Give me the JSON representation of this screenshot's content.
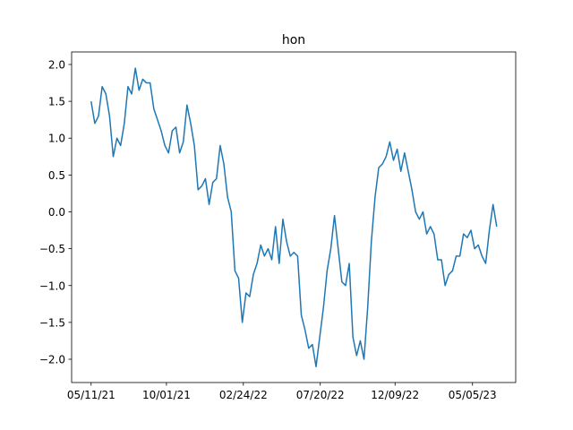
{
  "chart_data": {
    "type": "line",
    "title": "hon",
    "x": [
      "2021-05-11",
      "2021-05-18",
      "2021-05-25",
      "2021-06-01",
      "2021-06-08",
      "2021-06-15",
      "2021-06-22",
      "2021-06-29",
      "2021-07-06",
      "2021-07-13",
      "2021-07-20",
      "2021-07-27",
      "2021-08-03",
      "2021-08-10",
      "2021-08-17",
      "2021-08-24",
      "2021-08-31",
      "2021-09-07",
      "2021-09-14",
      "2021-09-21",
      "2021-09-28",
      "2021-10-05",
      "2021-10-12",
      "2021-10-19",
      "2021-10-26",
      "2021-11-02",
      "2021-11-09",
      "2021-11-16",
      "2021-11-23",
      "2021-11-30",
      "2021-12-07",
      "2021-12-14",
      "2021-12-21",
      "2021-12-28",
      "2022-01-04",
      "2022-01-11",
      "2022-01-18",
      "2022-01-25",
      "2022-02-01",
      "2022-02-08",
      "2022-02-15",
      "2022-02-22",
      "2022-03-01",
      "2022-03-08",
      "2022-03-15",
      "2022-03-22",
      "2022-03-29",
      "2022-04-05",
      "2022-04-12",
      "2022-04-19",
      "2022-04-26",
      "2022-05-03",
      "2022-05-10",
      "2022-05-17",
      "2022-05-24",
      "2022-05-31",
      "2022-06-07",
      "2022-06-14",
      "2022-06-21",
      "2022-06-28",
      "2022-07-05",
      "2022-07-12",
      "2022-07-19",
      "2022-07-26",
      "2022-08-02",
      "2022-08-09",
      "2022-08-16",
      "2022-08-23",
      "2022-08-30",
      "2022-09-06",
      "2022-09-13",
      "2022-09-20",
      "2022-09-27",
      "2022-10-04",
      "2022-10-11",
      "2022-10-18",
      "2022-10-25",
      "2022-11-01",
      "2022-11-08",
      "2022-11-15",
      "2022-11-22",
      "2022-11-29",
      "2022-12-06",
      "2022-12-13",
      "2022-12-20",
      "2022-12-27",
      "2023-01-03",
      "2023-01-10",
      "2023-01-17",
      "2023-01-24",
      "2023-01-31",
      "2023-02-07",
      "2023-02-14",
      "2023-02-21",
      "2023-02-28",
      "2023-03-07",
      "2023-03-14",
      "2023-03-21",
      "2023-03-28",
      "2023-04-04",
      "2023-04-11",
      "2023-04-18",
      "2023-04-25",
      "2023-05-02",
      "2023-05-09",
      "2023-05-16",
      "2023-05-23",
      "2023-05-30",
      "2023-06-06",
      "2023-06-13",
      "2023-06-20"
    ],
    "series": [
      {
        "color": "#1f77b4",
        "values": [
          1.5,
          1.2,
          1.3,
          1.7,
          1.6,
          1.3,
          0.75,
          1.0,
          0.9,
          1.2,
          1.7,
          1.6,
          1.95,
          1.65,
          1.8,
          1.75,
          1.75,
          1.4,
          1.25,
          1.1,
          0.9,
          0.8,
          1.1,
          1.15,
          0.8,
          0.95,
          1.45,
          1.2,
          0.9,
          0.3,
          0.35,
          0.45,
          0.1,
          0.4,
          0.45,
          0.9,
          0.65,
          0.2,
          0.0,
          -0.8,
          -0.9,
          -1.5,
          -1.1,
          -1.15,
          -0.85,
          -0.7,
          -0.45,
          -0.6,
          -0.5,
          -0.65,
          -0.2,
          -0.7,
          -0.1,
          -0.4,
          -0.6,
          -0.55,
          -0.6,
          -1.4,
          -1.6,
          -1.85,
          -1.8,
          -2.1,
          -1.7,
          -1.3,
          -0.8,
          -0.5,
          -0.05,
          -0.5,
          -0.95,
          -1.0,
          -0.7,
          -1.7,
          -1.95,
          -1.75,
          -2.0,
          -1.3,
          -0.4,
          0.2,
          0.6,
          0.65,
          0.75,
          0.95,
          0.7,
          0.85,
          0.55,
          0.8,
          0.55,
          0.3,
          0.0,
          -0.1,
          0.0,
          -0.3,
          -0.2,
          -0.3,
          -0.65,
          -0.65,
          -1.0,
          -0.85,
          -0.8,
          -0.6,
          -0.6,
          -0.3,
          -0.35,
          -0.25,
          -0.5,
          -0.45,
          -0.6,
          -0.7,
          -0.25,
          0.1,
          -0.2
        ]
      }
    ],
    "xlim": [
      "2021-04-04",
      "2023-07-26"
    ],
    "xticks": [
      {
        "value": "2021-05-11",
        "label": "05/11/21"
      },
      {
        "value": "2021-10-01",
        "label": "10/01/21"
      },
      {
        "value": "2022-02-24",
        "label": "02/24/22"
      },
      {
        "value": "2022-07-20",
        "label": "07/20/22"
      },
      {
        "value": "2022-12-09",
        "label": "12/09/22"
      },
      {
        "value": "2023-05-05",
        "label": "05/05/23"
      }
    ],
    "ylim": [
      -2.316,
      2.17
    ],
    "yticks": [
      {
        "value": -2.0,
        "label": "−2.0"
      },
      {
        "value": -1.5,
        "label": "−1.5"
      },
      {
        "value": -1.0,
        "label": "−1.0"
      },
      {
        "value": -0.5,
        "label": "−0.5"
      },
      {
        "value": 0.0,
        "label": "0.0"
      },
      {
        "value": 0.5,
        "label": "0.5"
      },
      {
        "value": 1.0,
        "label": "1.0"
      },
      {
        "value": 1.5,
        "label": "1.5"
      },
      {
        "value": 2.0,
        "label": "2.0"
      }
    ]
  }
}
